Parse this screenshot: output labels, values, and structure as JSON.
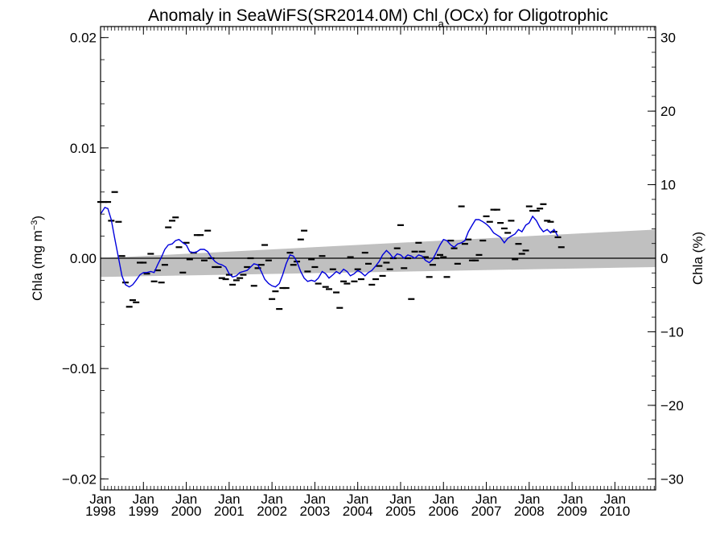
{
  "chart_data": {
    "type": "line",
    "title_main": "Anomaly in SeaWiFS(SR2014.0M) Chl",
    "title_sub": "a",
    "title_tail": "(OCx) for Oligotrophic",
    "ylabel_left_main": "Chla (mg m",
    "ylabel_left_sup": "−3",
    "ylabel_left_tail": ")",
    "ylabel_right": "Chla (%)",
    "xlim": [
      1998.0,
      2010.95
    ],
    "ylim": [
      -0.021,
      0.021
    ],
    "ylim_right": [
      -31.5,
      31.5
    ],
    "yticks_left": [
      {
        "value": 0.02,
        "label": "0.02"
      },
      {
        "value": 0.01,
        "label": "0.01"
      },
      {
        "value": 0.0,
        "label": "0.00"
      },
      {
        "value": -0.01,
        "label": "−0.01"
      },
      {
        "value": -0.02,
        "label": "−0.02"
      }
    ],
    "yticks_right": [
      {
        "value": 30,
        "label": "30"
      },
      {
        "value": 20,
        "label": "20"
      },
      {
        "value": 10,
        "label": "10"
      },
      {
        "value": 0,
        "label": "0"
      },
      {
        "value": -10,
        "label": "−10"
      },
      {
        "value": -20,
        "label": "−20"
      },
      {
        "value": -30,
        "label": "−30"
      }
    ],
    "xticks": [
      {
        "value": 1998,
        "month": "Jan",
        "year": "1998"
      },
      {
        "value": 1999,
        "month": "Jan",
        "year": "1999"
      },
      {
        "value": 2000,
        "month": "Jan",
        "year": "2000"
      },
      {
        "value": 2001,
        "month": "Jan",
        "year": "2001"
      },
      {
        "value": 2002,
        "month": "Jan",
        "year": "2002"
      },
      {
        "value": 2003,
        "month": "Jan",
        "year": "2003"
      },
      {
        "value": 2004,
        "month": "Jan",
        "year": "2004"
      },
      {
        "value": 2005,
        "month": "Jan",
        "year": "2005"
      },
      {
        "value": 2006,
        "month": "Jan",
        "year": "2006"
      },
      {
        "value": 2007,
        "month": "Jan",
        "year": "2007"
      },
      {
        "value": 2008,
        "month": "Jan",
        "year": "2008"
      },
      {
        "value": 2009,
        "month": "Jan",
        "year": "2009"
      },
      {
        "value": 2010,
        "month": "Jan",
        "year": "2010"
      }
    ],
    "trend_band": {
      "x": [
        1998.0,
        2010.95
      ],
      "upper": [
        0.0,
        0.0026
      ],
      "lower": [
        -0.0017,
        -0.0008
      ]
    },
    "series": [
      {
        "type": "line",
        "color": "#0000dd",
        "points": [
          [
            1998.0,
            0.004
          ],
          [
            1998.1,
            0.0046
          ],
          [
            1998.17,
            0.0045
          ],
          [
            1998.25,
            0.0035
          ],
          [
            1998.33,
            0.0018
          ],
          [
            1998.42,
            0.0
          ],
          [
            1998.5,
            -0.0016
          ],
          [
            1998.58,
            -0.0024
          ],
          [
            1998.67,
            -0.0026
          ],
          [
            1998.75,
            -0.0024
          ],
          [
            1998.83,
            -0.002
          ],
          [
            1998.92,
            -0.0015
          ],
          [
            1999.0,
            -0.0013
          ],
          [
            1999.08,
            -0.0013
          ],
          [
            1999.17,
            -0.0012
          ],
          [
            1999.25,
            -0.0013
          ],
          [
            1999.33,
            -0.0006
          ],
          [
            1999.42,
            0.0001
          ],
          [
            1999.5,
            0.0008
          ],
          [
            1999.58,
            0.0012
          ],
          [
            1999.67,
            0.0013
          ],
          [
            1999.75,
            0.0016
          ],
          [
            1999.83,
            0.0017
          ],
          [
            1999.92,
            0.0014
          ],
          [
            2000.0,
            0.0012
          ],
          [
            2000.08,
            0.0006
          ],
          [
            2000.17,
            0.0005
          ],
          [
            2000.25,
            0.0006
          ],
          [
            2000.33,
            0.0008
          ],
          [
            2000.42,
            0.0008
          ],
          [
            2000.5,
            0.0006
          ],
          [
            2000.58,
            0.0001
          ],
          [
            2000.67,
            -0.0003
          ],
          [
            2000.75,
            -0.0005
          ],
          [
            2000.83,
            -0.0006
          ],
          [
            2000.92,
            -0.0008
          ],
          [
            2001.0,
            -0.0014
          ],
          [
            2001.08,
            -0.0017
          ],
          [
            2001.17,
            -0.0016
          ],
          [
            2001.25,
            -0.0013
          ],
          [
            2001.33,
            -0.0012
          ],
          [
            2001.42,
            -0.0011
          ],
          [
            2001.5,
            -0.0008
          ],
          [
            2001.58,
            -0.0005
          ],
          [
            2001.67,
            -0.0006
          ],
          [
            2001.75,
            -0.0012
          ],
          [
            2001.83,
            -0.0019
          ],
          [
            2001.92,
            -0.0023
          ],
          [
            2002.0,
            -0.0025
          ],
          [
            2002.08,
            -0.0026
          ],
          [
            2002.17,
            -0.0023
          ],
          [
            2002.25,
            -0.0015
          ],
          [
            2002.33,
            -0.0005
          ],
          [
            2002.42,
            0.0003
          ],
          [
            2002.5,
            0.0002
          ],
          [
            2002.58,
            -0.0003
          ],
          [
            2002.67,
            -0.0012
          ],
          [
            2002.75,
            -0.0018
          ],
          [
            2002.83,
            -0.0021
          ],
          [
            2002.92,
            -0.002
          ],
          [
            2003.0,
            -0.0021
          ],
          [
            2003.08,
            -0.0018
          ],
          [
            2003.17,
            -0.0012
          ],
          [
            2003.25,
            -0.0014
          ],
          [
            2003.33,
            -0.0018
          ],
          [
            2003.42,
            -0.0015
          ],
          [
            2003.5,
            -0.0012
          ],
          [
            2003.58,
            -0.0014
          ],
          [
            2003.67,
            -0.001
          ],
          [
            2003.75,
            -0.0012
          ],
          [
            2003.83,
            -0.0016
          ],
          [
            2003.92,
            -0.0014
          ],
          [
            2004.0,
            -0.0011
          ],
          [
            2004.08,
            -0.0013
          ],
          [
            2004.17,
            -0.0016
          ],
          [
            2004.25,
            -0.0013
          ],
          [
            2004.33,
            -0.0011
          ],
          [
            2004.42,
            -0.0007
          ],
          [
            2004.5,
            -0.0003
          ],
          [
            2004.58,
            0.0003
          ],
          [
            2004.67,
            0.0007
          ],
          [
            2004.75,
            0.0004
          ],
          [
            2004.83,
            0.0
          ],
          [
            2004.92,
            0.0004
          ],
          [
            2005.0,
            0.0003
          ],
          [
            2005.08,
            0.0
          ],
          [
            2005.17,
            0.0003
          ],
          [
            2005.25,
            0.0002
          ],
          [
            2005.33,
            0.0
          ],
          [
            2005.42,
            0.0003
          ],
          [
            2005.5,
            0.0002
          ],
          [
            2005.58,
            -0.0002
          ],
          [
            2005.67,
            -0.0004
          ],
          [
            2005.75,
            -0.0001
          ],
          [
            2005.83,
            0.0005
          ],
          [
            2005.92,
            0.0012
          ],
          [
            2006.0,
            0.0017
          ],
          [
            2006.08,
            0.0016
          ],
          [
            2006.17,
            0.0012
          ],
          [
            2006.25,
            0.001
          ],
          [
            2006.33,
            0.0013
          ],
          [
            2006.42,
            0.0014
          ],
          [
            2006.5,
            0.0016
          ],
          [
            2006.58,
            0.0024
          ],
          [
            2006.67,
            0.003
          ],
          [
            2006.75,
            0.0035
          ],
          [
            2006.83,
            0.0035
          ],
          [
            2006.92,
            0.0033
          ],
          [
            2007.0,
            0.0031
          ],
          [
            2007.08,
            0.0028
          ],
          [
            2007.17,
            0.0023
          ],
          [
            2007.25,
            0.0021
          ],
          [
            2007.33,
            0.0019
          ],
          [
            2007.42,
            0.0014
          ],
          [
            2007.5,
            0.0018
          ],
          [
            2007.58,
            0.002
          ],
          [
            2007.67,
            0.0022
          ],
          [
            2007.75,
            0.0026
          ],
          [
            2007.83,
            0.0024
          ],
          [
            2007.92,
            0.003
          ],
          [
            2008.0,
            0.0032
          ],
          [
            2008.08,
            0.0038
          ],
          [
            2008.17,
            0.0034
          ],
          [
            2008.25,
            0.0028
          ],
          [
            2008.33,
            0.0024
          ],
          [
            2008.42,
            0.0026
          ],
          [
            2008.5,
            0.0023
          ],
          [
            2008.58,
            0.0026
          ],
          [
            2008.67,
            0.002
          ]
        ]
      }
    ],
    "monthly_means": [
      [
        1998.0,
        0.0051
      ],
      [
        1998.08,
        0.0051
      ],
      [
        1998.17,
        0.0051
      ],
      [
        1998.25,
        0.0034
      ],
      [
        1998.33,
        0.006
      ],
      [
        1998.42,
        0.0033
      ],
      [
        1998.5,
        0.0002
      ],
      [
        1998.58,
        -0.0022
      ],
      [
        1998.67,
        -0.0044
      ],
      [
        1998.75,
        -0.0038
      ],
      [
        1998.83,
        -0.004
      ],
      [
        1998.92,
        -0.0004
      ],
      [
        1999.0,
        -0.0004
      ],
      [
        1999.08,
        -0.0014
      ],
      [
        1999.17,
        0.0004
      ],
      [
        1999.25,
        -0.0021
      ],
      [
        1999.33,
        -0.0011
      ],
      [
        1999.42,
        -0.0022
      ],
      [
        1999.5,
        -0.0006
      ],
      [
        1999.58,
        0.0028
      ],
      [
        1999.67,
        0.0034
      ],
      [
        1999.75,
        0.0037
      ],
      [
        1999.83,
        0.001
      ],
      [
        1999.92,
        -0.0013
      ],
      [
        2000.0,
        0.0014
      ],
      [
        2000.08,
        -0.0001
      ],
      [
        2000.17,
        0.0005
      ],
      [
        2000.25,
        0.0021
      ],
      [
        2000.33,
        0.0021
      ],
      [
        2000.42,
        -0.0002
      ],
      [
        2000.5,
        0.0025
      ],
      [
        2000.58,
        0.0
      ],
      [
        2000.67,
        -0.0008
      ],
      [
        2000.75,
        -0.0008
      ],
      [
        2000.83,
        -0.0018
      ],
      [
        2000.92,
        -0.0019
      ],
      [
        2001.0,
        -0.0015
      ],
      [
        2001.08,
        -0.0024
      ],
      [
        2001.17,
        -0.002
      ],
      [
        2001.25,
        -0.0018
      ],
      [
        2001.33,
        -0.0015
      ],
      [
        2001.42,
        -0.0008
      ],
      [
        2001.5,
        0.0
      ],
      [
        2001.58,
        -0.0025
      ],
      [
        2001.67,
        -0.0009
      ],
      [
        2001.75,
        -0.0006
      ],
      [
        2001.83,
        0.0012
      ],
      [
        2001.92,
        -0.0002
      ],
      [
        2002.0,
        -0.0037
      ],
      [
        2002.08,
        -0.003
      ],
      [
        2002.17,
        -0.0046
      ],
      [
        2002.25,
        -0.0027
      ],
      [
        2002.33,
        -0.0027
      ],
      [
        2002.42,
        0.0005
      ],
      [
        2002.5,
        -0.0006
      ],
      [
        2002.58,
        -0.0003
      ],
      [
        2002.67,
        0.0017
      ],
      [
        2002.75,
        0.0025
      ],
      [
        2002.83,
        -0.0012
      ],
      [
        2002.92,
        -0.0001
      ],
      [
        2003.0,
        -0.0008
      ],
      [
        2003.08,
        -0.0023
      ],
      [
        2003.17,
        0.0002
      ],
      [
        2003.25,
        -0.0026
      ],
      [
        2003.33,
        -0.0028
      ],
      [
        2003.42,
        -0.001
      ],
      [
        2003.5,
        -0.0031
      ],
      [
        2003.58,
        -0.0045
      ],
      [
        2003.67,
        -0.0021
      ],
      [
        2003.75,
        -0.0023
      ],
      [
        2003.83,
        0.0001
      ],
      [
        2003.92,
        -0.0021
      ],
      [
        2004.0,
        -0.001
      ],
      [
        2004.08,
        -0.0019
      ],
      [
        2004.17,
        0.0005
      ],
      [
        2004.25,
        -0.0005
      ],
      [
        2004.33,
        -0.0024
      ],
      [
        2004.42,
        -0.0019
      ],
      [
        2004.5,
        -0.0007
      ],
      [
        2004.58,
        -0.0016
      ],
      [
        2004.67,
        -0.0004
      ],
      [
        2004.75,
        -0.001
      ],
      [
        2004.83,
        0.0
      ],
      [
        2004.92,
        0.0009
      ],
      [
        2005.0,
        0.003
      ],
      [
        2005.08,
        -0.0009
      ],
      [
        2005.17,
        0.0
      ],
      [
        2005.25,
        -0.0037
      ],
      [
        2005.33,
        0.0006
      ],
      [
        2005.42,
        0.0014
      ],
      [
        2005.5,
        0.0006
      ],
      [
        2005.58,
        0.0001
      ],
      [
        2005.67,
        -0.0017
      ],
      [
        2005.75,
        -0.0006
      ],
      [
        2005.83,
        0.0
      ],
      [
        2005.92,
        0.0003
      ],
      [
        2006.0,
        0.0001
      ],
      [
        2006.08,
        -0.0017
      ],
      [
        2006.17,
        0.0016
      ],
      [
        2006.25,
        0.0009
      ],
      [
        2006.33,
        -0.0005
      ],
      [
        2006.42,
        0.0047
      ],
      [
        2006.5,
        0.0013
      ],
      [
        2006.58,
        0.0017
      ],
      [
        2006.67,
        -0.0002
      ],
      [
        2006.75,
        -0.0002
      ],
      [
        2006.83,
        0.0003
      ],
      [
        2006.92,
        0.0016
      ],
      [
        2007.0,
        0.0038
      ],
      [
        2007.08,
        0.0033
      ],
      [
        2007.17,
        0.0044
      ],
      [
        2007.25,
        0.0044
      ],
      [
        2007.33,
        0.0032
      ],
      [
        2007.42,
        0.0027
      ],
      [
        2007.5,
        0.0023
      ],
      [
        2007.58,
        0.0034
      ],
      [
        2007.67,
        -0.0001
      ],
      [
        2007.75,
        0.0013
      ],
      [
        2007.83,
        0.0004
      ],
      [
        2007.92,
        0.0007
      ],
      [
        2008.0,
        0.0047
      ],
      [
        2008.08,
        0.0043
      ],
      [
        2008.17,
        0.0043
      ],
      [
        2008.25,
        0.0045
      ],
      [
        2008.33,
        0.0049
      ],
      [
        2008.42,
        0.0034
      ],
      [
        2008.5,
        0.0033
      ],
      [
        2008.58,
        0.0024
      ],
      [
        2008.67,
        0.0019
      ],
      [
        2008.75,
        0.001
      ]
    ]
  }
}
